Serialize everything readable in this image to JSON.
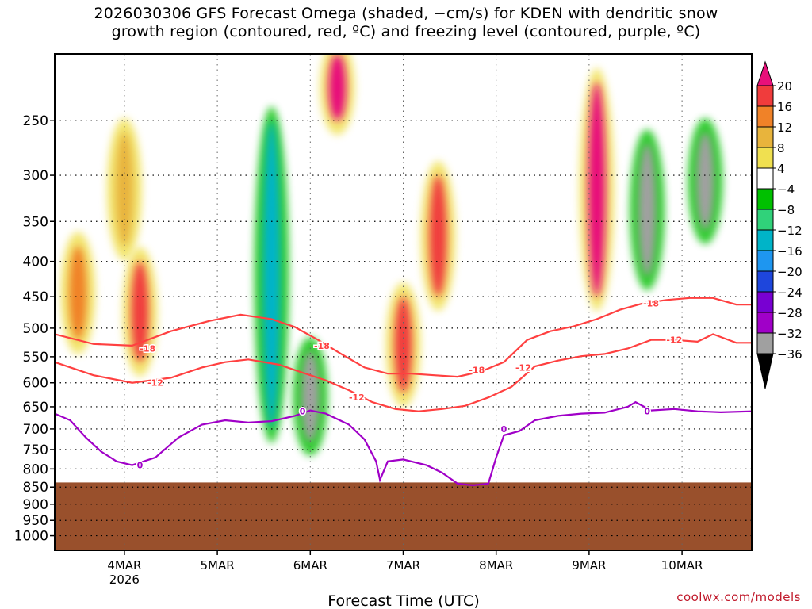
{
  "title": {
    "line1": "2026030306 GFS Forecast Omega (shaded, −cm/s) for KDEN with dendritic snow",
    "line2": "growth region (contoured, red, ºC) and freezing level (contoured, purple, ºC)"
  },
  "credit": "coolwx.com/models",
  "chart_data": {
    "type": "heatmap",
    "xlabel": "Forecast Time (UTC)",
    "ylabel": "",
    "x_range_hours": [
      0,
      180
    ],
    "x_ticks": [
      {
        "hour": 18,
        "label": "4MAR",
        "sublabel": "2026"
      },
      {
        "hour": 42,
        "label": "5MAR",
        "sublabel": ""
      },
      {
        "hour": 66,
        "label": "6MAR",
        "sublabel": ""
      },
      {
        "hour": 90,
        "label": "7MAR",
        "sublabel": ""
      },
      {
        "hour": 114,
        "label": "8MAR",
        "sublabel": ""
      },
      {
        "hour": 138,
        "label": "9MAR",
        "sublabel": ""
      },
      {
        "hour": 162,
        "label": "10MAR",
        "sublabel": ""
      }
    ],
    "y_axis": "pressure_hPa",
    "y_scale": "log",
    "y_range": [
      200,
      1050
    ],
    "y_ticks": [
      250,
      300,
      350,
      400,
      450,
      500,
      550,
      600,
      650,
      700,
      750,
      800,
      850,
      900,
      950,
      1000
    ],
    "grid": true,
    "colorbar": {
      "labels": [
        20,
        16,
        12,
        8,
        4,
        -4,
        -8,
        -12,
        -16,
        -20,
        -24,
        -28,
        -32,
        -36
      ],
      "colors": [
        "#e8107a",
        "#f03c3c",
        "#f08228",
        "#e8b43c",
        "#f0e050",
        "#ffffff",
        "#00c000",
        "#30d27a",
        "#00b4c8",
        "#1e96f0",
        "#1e46dc",
        "#7800d2",
        "#a000c8",
        "#a0a0a0",
        "#000000"
      ]
    },
    "omega_features": [
      {
        "time": 6,
        "pressure_top": 380,
        "pressure_bottom": 520,
        "value": 12
      },
      {
        "time": 18,
        "pressure_top": 260,
        "pressure_bottom": 380,
        "value": 8
      },
      {
        "time": 22,
        "pressure_top": 400,
        "pressure_bottom": 560,
        "value": 16
      },
      {
        "time": 56,
        "pressure_top": 250,
        "pressure_bottom": 700,
        "value": -16
      },
      {
        "time": 66,
        "pressure_top": 540,
        "pressure_bottom": 730,
        "value": -36
      },
      {
        "time": 73,
        "pressure_top": 200,
        "pressure_bottom": 250,
        "value": 20
      },
      {
        "time": 90,
        "pressure_top": 450,
        "pressure_bottom": 620,
        "value": 16
      },
      {
        "time": 99,
        "pressure_top": 300,
        "pressure_bottom": 450,
        "value": 16
      },
      {
        "time": 140,
        "pressure_top": 220,
        "pressure_bottom": 450,
        "value": 20
      },
      {
        "time": 153,
        "pressure_top": 270,
        "pressure_bottom": 420,
        "value": -36
      },
      {
        "time": 168,
        "pressure_top": 260,
        "pressure_bottom": 360,
        "value": -36
      }
    ],
    "contours": [
      {
        "name": "-18",
        "color": "#ff4040",
        "label_positions": [
          [
            24,
            535
          ],
          [
            69,
            530
          ],
          [
            109,
            575
          ],
          [
            154,
            460
          ]
        ],
        "points": [
          [
            0,
            510
          ],
          [
            10,
            527
          ],
          [
            20,
            530
          ],
          [
            30,
            505
          ],
          [
            40,
            488
          ],
          [
            48,
            478
          ],
          [
            56,
            485
          ],
          [
            62,
            498
          ],
          [
            68,
            520
          ],
          [
            74,
            545
          ],
          [
            80,
            570
          ],
          [
            86,
            582
          ],
          [
            92,
            582
          ],
          [
            98,
            585
          ],
          [
            104,
            588
          ],
          [
            110,
            578
          ],
          [
            116,
            560
          ],
          [
            122,
            520
          ],
          [
            128,
            505
          ],
          [
            134,
            497
          ],
          [
            140,
            485
          ],
          [
            146,
            470
          ],
          [
            152,
            460
          ],
          [
            158,
            455
          ],
          [
            164,
            452
          ],
          [
            170,
            452
          ],
          [
            176,
            462
          ],
          [
            180,
            462
          ]
        ]
      },
      {
        "name": "-12",
        "color": "#ff4040",
        "label_positions": [
          [
            26,
            600
          ],
          [
            78,
            630
          ],
          [
            121,
            570
          ],
          [
            160,
            520
          ]
        ],
        "points": [
          [
            0,
            560
          ],
          [
            10,
            585
          ],
          [
            20,
            600
          ],
          [
            30,
            590
          ],
          [
            38,
            570
          ],
          [
            44,
            560
          ],
          [
            50,
            555
          ],
          [
            58,
            565
          ],
          [
            64,
            580
          ],
          [
            70,
            595
          ],
          [
            76,
            615
          ],
          [
            82,
            640
          ],
          [
            88,
            655
          ],
          [
            94,
            660
          ],
          [
            100,
            655
          ],
          [
            106,
            648
          ],
          [
            112,
            630
          ],
          [
            118,
            608
          ],
          [
            124,
            568
          ],
          [
            130,
            557
          ],
          [
            136,
            549
          ],
          [
            142,
            545
          ],
          [
            148,
            535
          ],
          [
            154,
            520
          ],
          [
            160,
            520
          ],
          [
            166,
            523
          ],
          [
            170,
            510
          ],
          [
            176,
            525
          ],
          [
            180,
            525
          ]
        ]
      },
      {
        "name": "0",
        "color": "#a000c8",
        "label_positions": [
          [
            22,
            790
          ],
          [
            64,
            660
          ],
          [
            116,
            700
          ],
          [
            153,
            660
          ]
        ],
        "points": [
          [
            0,
            665
          ],
          [
            4,
            680
          ],
          [
            8,
            720
          ],
          [
            12,
            755
          ],
          [
            16,
            780
          ],
          [
            20,
            790
          ],
          [
            26,
            770
          ],
          [
            32,
            720
          ],
          [
            38,
            690
          ],
          [
            44,
            680
          ],
          [
            50,
            685
          ],
          [
            56,
            682
          ],
          [
            62,
            670
          ],
          [
            66,
            658
          ],
          [
            70,
            665
          ],
          [
            76,
            690
          ],
          [
            80,
            725
          ],
          [
            83,
            780
          ],
          [
            84,
            830
          ],
          [
            86,
            780
          ],
          [
            90,
            775
          ],
          [
            96,
            790
          ],
          [
            100,
            810
          ],
          [
            104,
            840
          ],
          [
            108,
            845
          ],
          [
            112,
            840
          ],
          [
            114,
            770
          ],
          [
            116,
            715
          ],
          [
            120,
            705
          ],
          [
            124,
            680
          ],
          [
            130,
            670
          ],
          [
            136,
            665
          ],
          [
            142,
            663
          ],
          [
            148,
            650
          ],
          [
            150,
            640
          ],
          [
            154,
            658
          ],
          [
            160,
            655
          ],
          [
            166,
            660
          ],
          [
            172,
            662
          ],
          [
            180,
            660
          ]
        ]
      }
    ],
    "terrain_pressure": 837
  }
}
